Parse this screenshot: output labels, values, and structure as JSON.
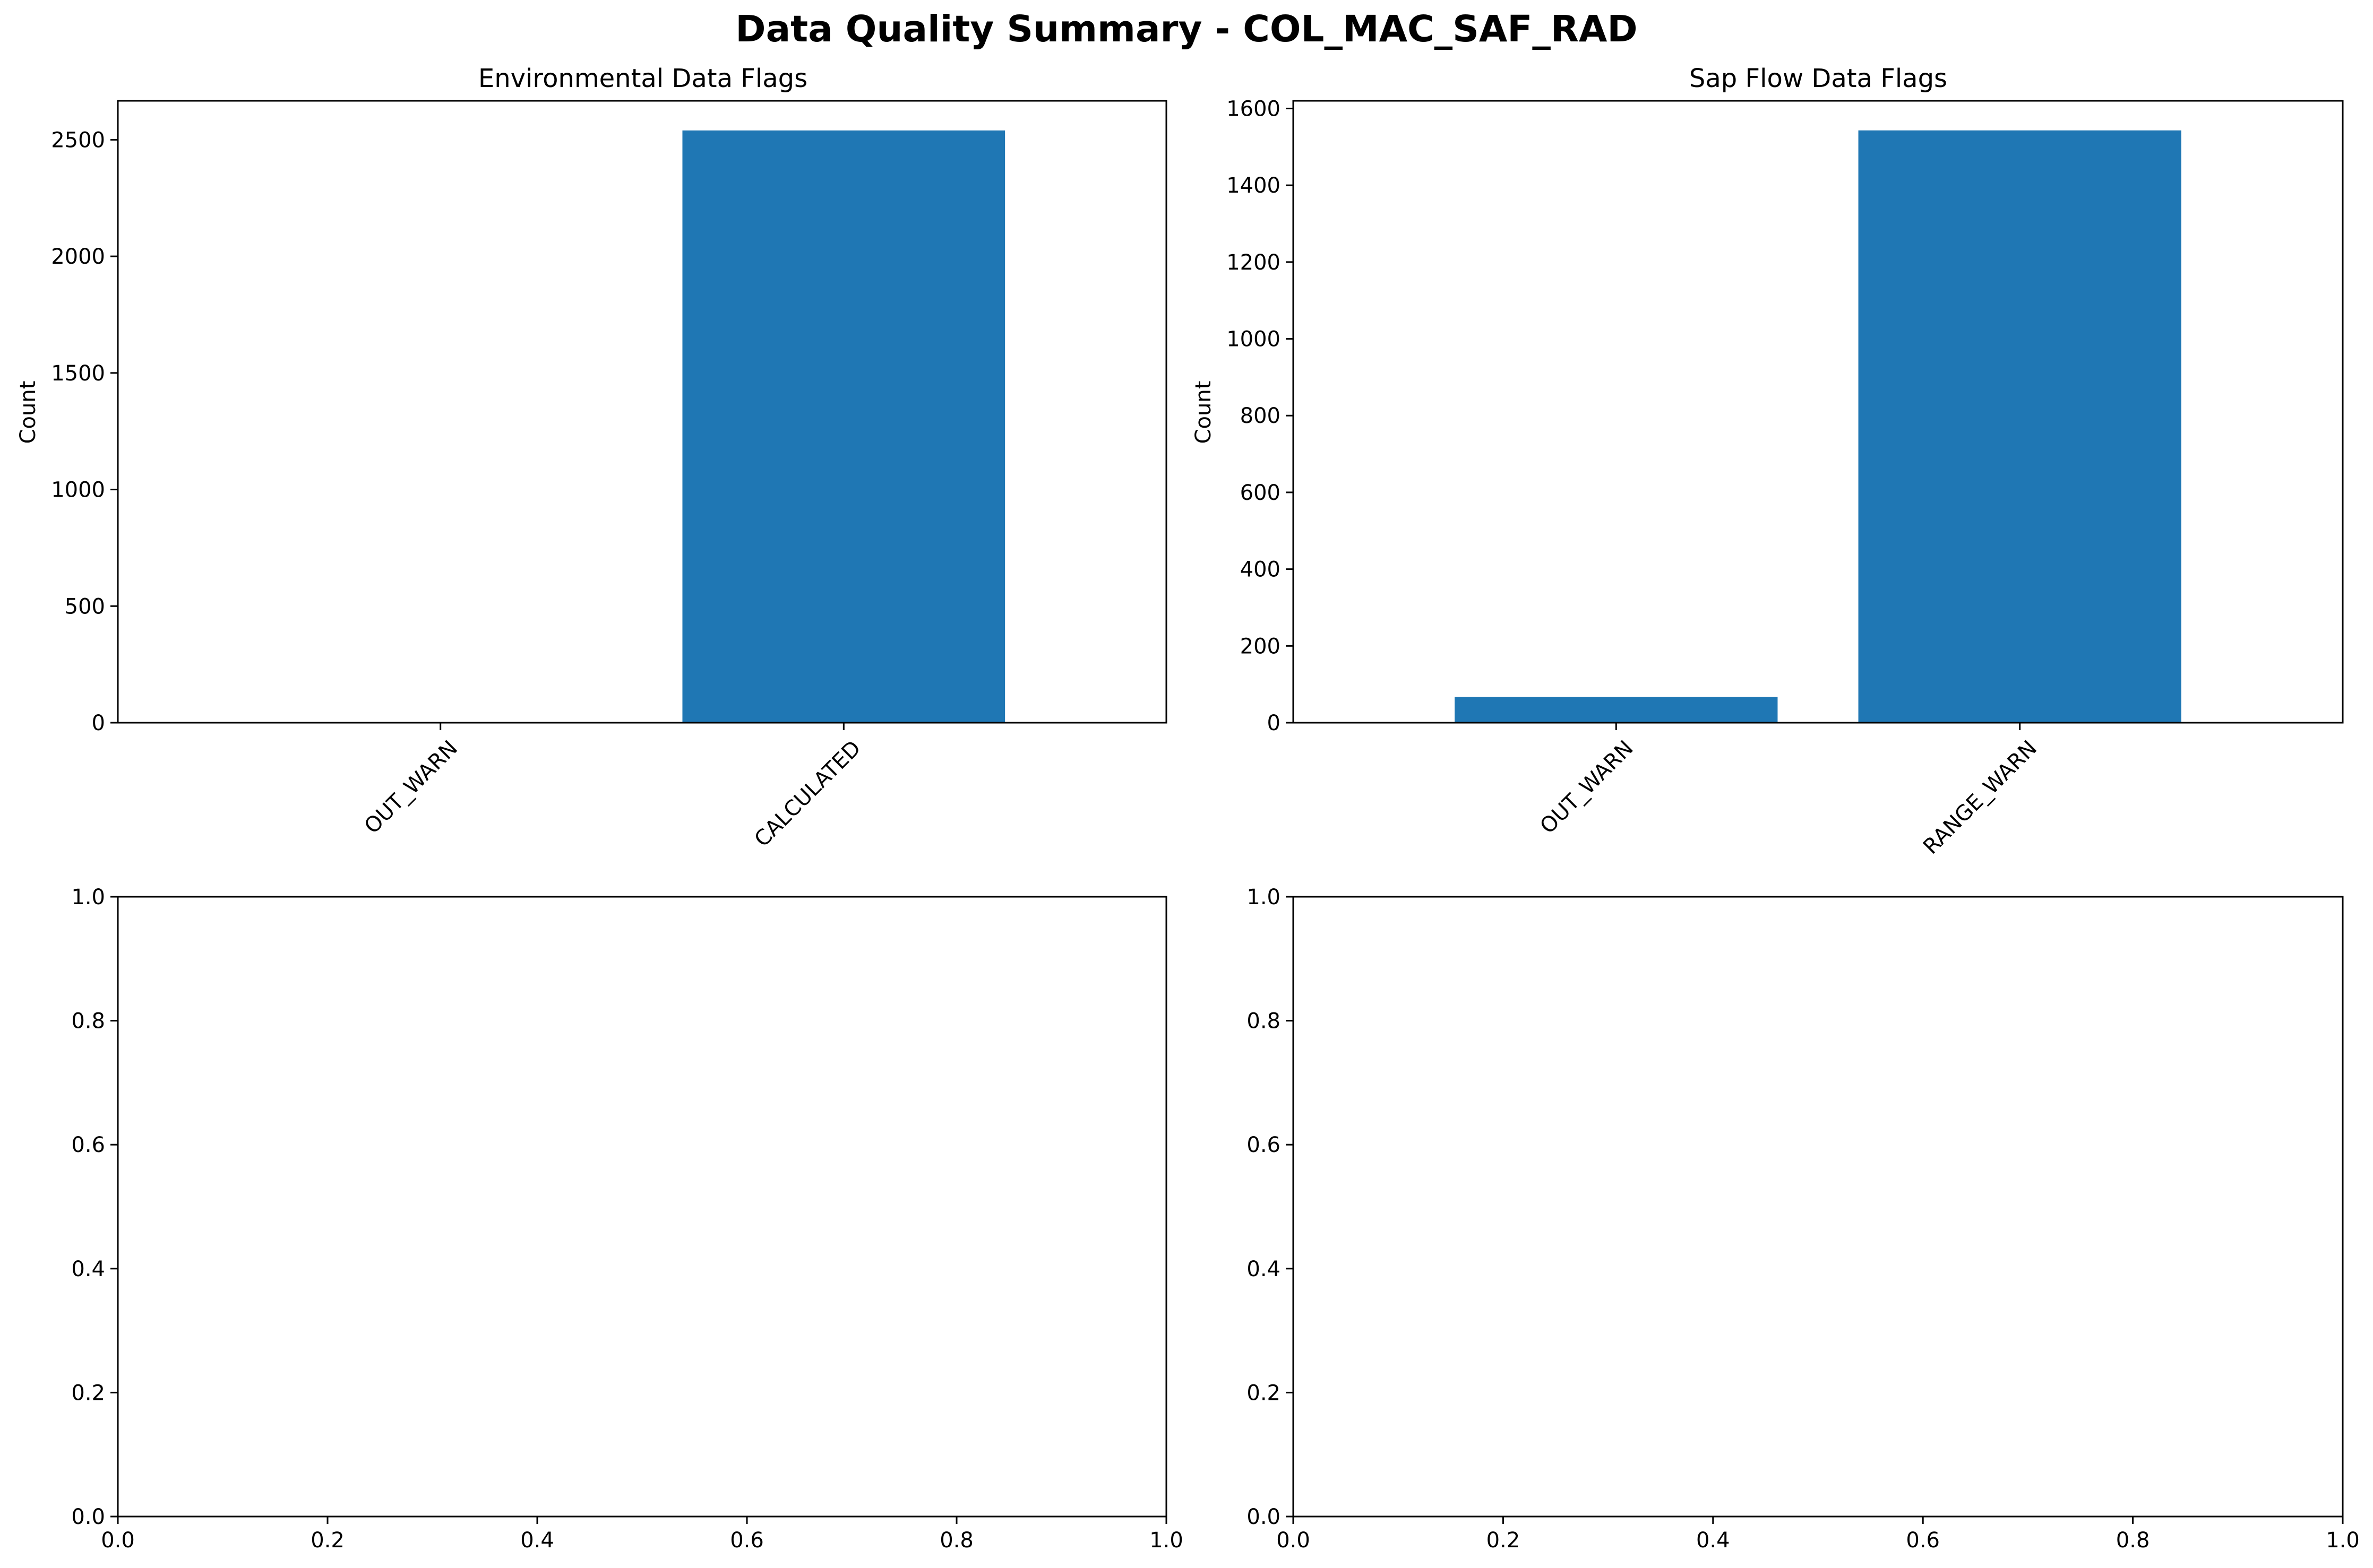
{
  "figure": {
    "title": "Data Quality Summary - COL_MAC_SAF_RAD",
    "bar_color": "#1f77b4"
  },
  "chart_data": [
    {
      "type": "bar",
      "title": "Environmental Data Flags",
      "xlabel": "",
      "ylabel": "Count",
      "categories": [
        "OUT_WARN",
        "CALCULATED"
      ],
      "values": [
        3,
        2540
      ],
      "ylim": [
        0,
        2667
      ],
      "yticks": [
        0,
        500,
        1000,
        1500,
        2000,
        2500
      ],
      "xtick_rotation": 45,
      "grid": false
    },
    {
      "type": "bar",
      "title": "Sap Flow Data Flags",
      "xlabel": "",
      "ylabel": "Count",
      "categories": [
        "OUT_WARN",
        "RANGE_WARN"
      ],
      "values": [
        67,
        1543
      ],
      "ylim": [
        0,
        1620
      ],
      "yticks": [
        0,
        200,
        400,
        600,
        800,
        1000,
        1200,
        1400,
        1600
      ],
      "xtick_rotation": 45,
      "grid": false
    },
    {
      "type": "bar",
      "title": "",
      "categories": [],
      "values": [],
      "xlim": [
        0,
        1
      ],
      "ylim": [
        0,
        1
      ],
      "xticks": [
        "0.0",
        "0.2",
        "0.4",
        "0.6",
        "0.8",
        "1.0"
      ],
      "yticks": [
        "0.0",
        "0.2",
        "0.4",
        "0.6",
        "0.8",
        "1.0"
      ],
      "grid": false
    },
    {
      "type": "bar",
      "title": "",
      "categories": [],
      "values": [],
      "xlim": [
        0,
        1
      ],
      "ylim": [
        0,
        1
      ],
      "xticks": [
        "0.0",
        "0.2",
        "0.4",
        "0.6",
        "0.8",
        "1.0"
      ],
      "yticks": [
        "0.0",
        "0.2",
        "0.4",
        "0.6",
        "0.8",
        "1.0"
      ],
      "grid": false
    }
  ]
}
